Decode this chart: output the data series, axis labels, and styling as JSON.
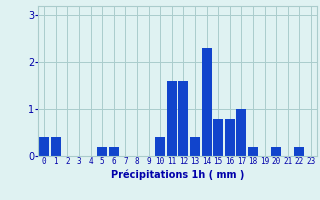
{
  "values": [
    0.4,
    0.4,
    0,
    0,
    0,
    0.2,
    0.2,
    0,
    0,
    0,
    0.4,
    1.6,
    1.6,
    0.4,
    2.3,
    0.8,
    0.8,
    1.0,
    0.2,
    0,
    0.2,
    0,
    0.2,
    0
  ],
  "categories": [
    "0",
    "1",
    "2",
    "3",
    "4",
    "5",
    "6",
    "7",
    "8",
    "9",
    "10",
    "11",
    "12",
    "13",
    "14",
    "15",
    "16",
    "17",
    "18",
    "19",
    "20",
    "21",
    "22",
    "23"
  ],
  "bar_color": "#1144cc",
  "background_color": "#dff2f2",
  "grid_color": "#aacccc",
  "xlabel": "Précipitations 1h ( mm )",
  "xlabel_color": "#0000aa",
  "tick_color": "#0000aa",
  "ylim": [
    0,
    3.2
  ],
  "yticks": [
    0,
    1,
    2,
    3
  ],
  "figsize": [
    3.2,
    2.0
  ],
  "dpi": 100
}
